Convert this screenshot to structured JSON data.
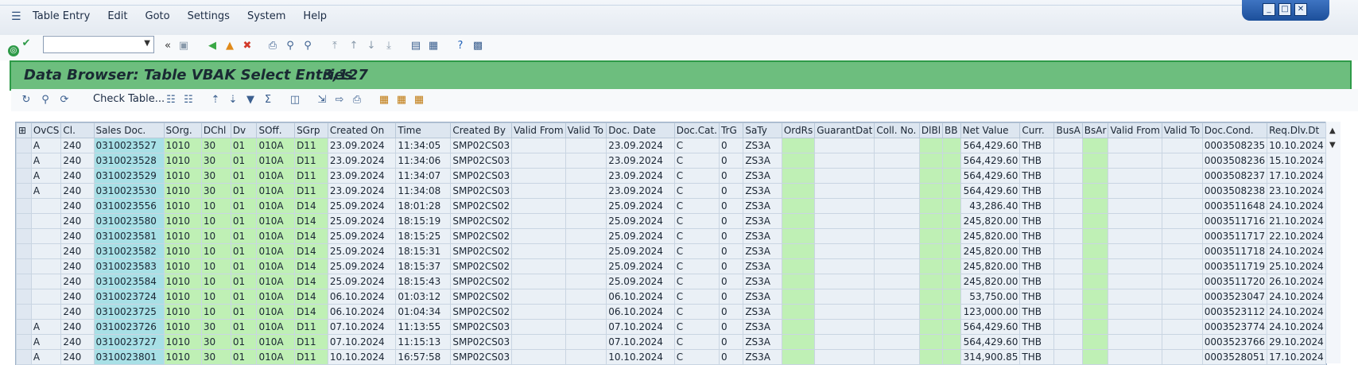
{
  "menu": [
    "Table Entry",
    "Edit",
    "Goto",
    "Settings",
    "System",
    "Help"
  ],
  "icons": [
    "menu-icon",
    "enter-check-icon",
    "save-icon",
    "back-icon",
    "exit-icon",
    "cancel-icon",
    "print-icon",
    "find-icon",
    "find-next-icon",
    "first-page-icon",
    "prev-page-icon",
    "next-page-icon",
    "last-page-icon",
    "create-session-icon",
    "shortcut-icon",
    "help-icon",
    "customize-layout-icon"
  ],
  "window": {
    "title": "Data Browser: Table VBAK Select Entries",
    "count": "3,127"
  },
  "app_toolbar": {
    "check_table": "Check Table..."
  },
  "columns": [
    "OvCS",
    "Cl.",
    "Sales Doc.",
    "SOrg.",
    "DChl",
    "Dv",
    "SOff.",
    "SGrp",
    "Created On",
    "Time",
    "Created By",
    "Valid From",
    "Valid To",
    "Doc. Date",
    "Doc.Cat.",
    "TrG",
    "SaTy",
    "OrdRs",
    "GuarantDat",
    "Coll. No.",
    "DlBl",
    "BB",
    "Net Value",
    "Curr.",
    "BusA",
    "BsAr",
    "Valid From",
    "Valid To",
    "Doc.Cond.",
    "Req.Dlv.Dt"
  ],
  "rows": [
    [
      "A",
      "240",
      "0310023527",
      "1010",
      "30",
      "01",
      "010A",
      "D11",
      "23.09.2024",
      "11:34:05",
      "SMP02CS03",
      "",
      "",
      "23.09.2024",
      "C",
      "0",
      "ZS3A",
      "",
      "",
      "",
      "",
      "",
      "564,429.60",
      "THB",
      "",
      "",
      "",
      "",
      "0003508235",
      "10.10.2024"
    ],
    [
      "A",
      "240",
      "0310023528",
      "1010",
      "30",
      "01",
      "010A",
      "D11",
      "23.09.2024",
      "11:34:06",
      "SMP02CS03",
      "",
      "",
      "23.09.2024",
      "C",
      "0",
      "ZS3A",
      "",
      "",
      "",
      "",
      "",
      "564,429.60",
      "THB",
      "",
      "",
      "",
      "",
      "0003508236",
      "15.10.2024"
    ],
    [
      "A",
      "240",
      "0310023529",
      "1010",
      "30",
      "01",
      "010A",
      "D11",
      "23.09.2024",
      "11:34:07",
      "SMP02CS03",
      "",
      "",
      "23.09.2024",
      "C",
      "0",
      "ZS3A",
      "",
      "",
      "",
      "",
      "",
      "564,429.60",
      "THB",
      "",
      "",
      "",
      "",
      "0003508237",
      "17.10.2024"
    ],
    [
      "A",
      "240",
      "0310023530",
      "1010",
      "30",
      "01",
      "010A",
      "D11",
      "23.09.2024",
      "11:34:08",
      "SMP02CS03",
      "",
      "",
      "23.09.2024",
      "C",
      "0",
      "ZS3A",
      "",
      "",
      "",
      "",
      "",
      "564,429.60",
      "THB",
      "",
      "",
      "",
      "",
      "0003508238",
      "23.10.2024"
    ],
    [
      "",
      "240",
      "0310023556",
      "1010",
      "10",
      "01",
      "010A",
      "D14",
      "25.09.2024",
      "18:01:28",
      "SMP02CS02",
      "",
      "",
      "25.09.2024",
      "C",
      "0",
      "ZS3A",
      "",
      "",
      "",
      "",
      "",
      "43,286.40",
      "THB",
      "",
      "",
      "",
      "",
      "0003511648",
      "24.10.2024"
    ],
    [
      "",
      "240",
      "0310023580",
      "1010",
      "10",
      "01",
      "010A",
      "D14",
      "25.09.2024",
      "18:15:19",
      "SMP02CS02",
      "",
      "",
      "25.09.2024",
      "C",
      "0",
      "ZS3A",
      "",
      "",
      "",
      "",
      "",
      "245,820.00",
      "THB",
      "",
      "",
      "",
      "",
      "0003511716",
      "21.10.2024"
    ],
    [
      "",
      "240",
      "0310023581",
      "1010",
      "10",
      "01",
      "010A",
      "D14",
      "25.09.2024",
      "18:15:25",
      "SMP02CS02",
      "",
      "",
      "25.09.2024",
      "C",
      "0",
      "ZS3A",
      "",
      "",
      "",
      "",
      "",
      "245,820.00",
      "THB",
      "",
      "",
      "",
      "",
      "0003511717",
      "22.10.2024"
    ],
    [
      "",
      "240",
      "0310023582",
      "1010",
      "10",
      "01",
      "010A",
      "D14",
      "25.09.2024",
      "18:15:31",
      "SMP02CS02",
      "",
      "",
      "25.09.2024",
      "C",
      "0",
      "ZS3A",
      "",
      "",
      "",
      "",
      "",
      "245,820.00",
      "THB",
      "",
      "",
      "",
      "",
      "0003511718",
      "24.10.2024"
    ],
    [
      "",
      "240",
      "0310023583",
      "1010",
      "10",
      "01",
      "010A",
      "D14",
      "25.09.2024",
      "18:15:37",
      "SMP02CS02",
      "",
      "",
      "25.09.2024",
      "C",
      "0",
      "ZS3A",
      "",
      "",
      "",
      "",
      "",
      "245,820.00",
      "THB",
      "",
      "",
      "",
      "",
      "0003511719",
      "25.10.2024"
    ],
    [
      "",
      "240",
      "0310023584",
      "1010",
      "10",
      "01",
      "010A",
      "D14",
      "25.09.2024",
      "18:15:43",
      "SMP02CS02",
      "",
      "",
      "25.09.2024",
      "C",
      "0",
      "ZS3A",
      "",
      "",
      "",
      "",
      "",
      "245,820.00",
      "THB",
      "",
      "",
      "",
      "",
      "0003511720",
      "26.10.2024"
    ],
    [
      "",
      "240",
      "0310023724",
      "1010",
      "10",
      "01",
      "010A",
      "D14",
      "06.10.2024",
      "01:03:12",
      "SMP02CS02",
      "",
      "",
      "06.10.2024",
      "C",
      "0",
      "ZS3A",
      "",
      "",
      "",
      "",
      "",
      "53,750.00",
      "THB",
      "",
      "",
      "",
      "",
      "0003523047",
      "24.10.2024"
    ],
    [
      "",
      "240",
      "0310023725",
      "1010",
      "10",
      "01",
      "010A",
      "D14",
      "06.10.2024",
      "01:04:34",
      "SMP02CS02",
      "",
      "",
      "06.10.2024",
      "C",
      "0",
      "ZS3A",
      "",
      "",
      "",
      "",
      "",
      "123,000.00",
      "THB",
      "",
      "",
      "",
      "",
      "0003523112",
      "24.10.2024"
    ],
    [
      "A",
      "240",
      "0310023726",
      "1010",
      "30",
      "01",
      "010A",
      "D11",
      "07.10.2024",
      "11:13:55",
      "SMP02CS03",
      "",
      "",
      "07.10.2024",
      "C",
      "0",
      "ZS3A",
      "",
      "",
      "",
      "",
      "",
      "564,429.60",
      "THB",
      "",
      "",
      "",
      "",
      "0003523774",
      "24.10.2024"
    ],
    [
      "A",
      "240",
      "0310023727",
      "1010",
      "30",
      "01",
      "010A",
      "D11",
      "07.10.2024",
      "11:15:13",
      "SMP02CS03",
      "",
      "",
      "07.10.2024",
      "C",
      "0",
      "ZS3A",
      "",
      "",
      "",
      "",
      "",
      "564,429.60",
      "THB",
      "",
      "",
      "",
      "",
      "0003523766",
      "29.10.2024"
    ],
    [
      "A",
      "240",
      "0310023801",
      "1010",
      "30",
      "01",
      "010A",
      "D11",
      "10.10.2024",
      "16:57:58",
      "SMP02CS03",
      "",
      "",
      "10.10.2024",
      "C",
      "0",
      "ZS3A",
      "",
      "",
      "",
      "",
      "",
      "314,900.85",
      "THB",
      "",
      "",
      "",
      "",
      "0003528051",
      "17.10.2024"
    ]
  ]
}
